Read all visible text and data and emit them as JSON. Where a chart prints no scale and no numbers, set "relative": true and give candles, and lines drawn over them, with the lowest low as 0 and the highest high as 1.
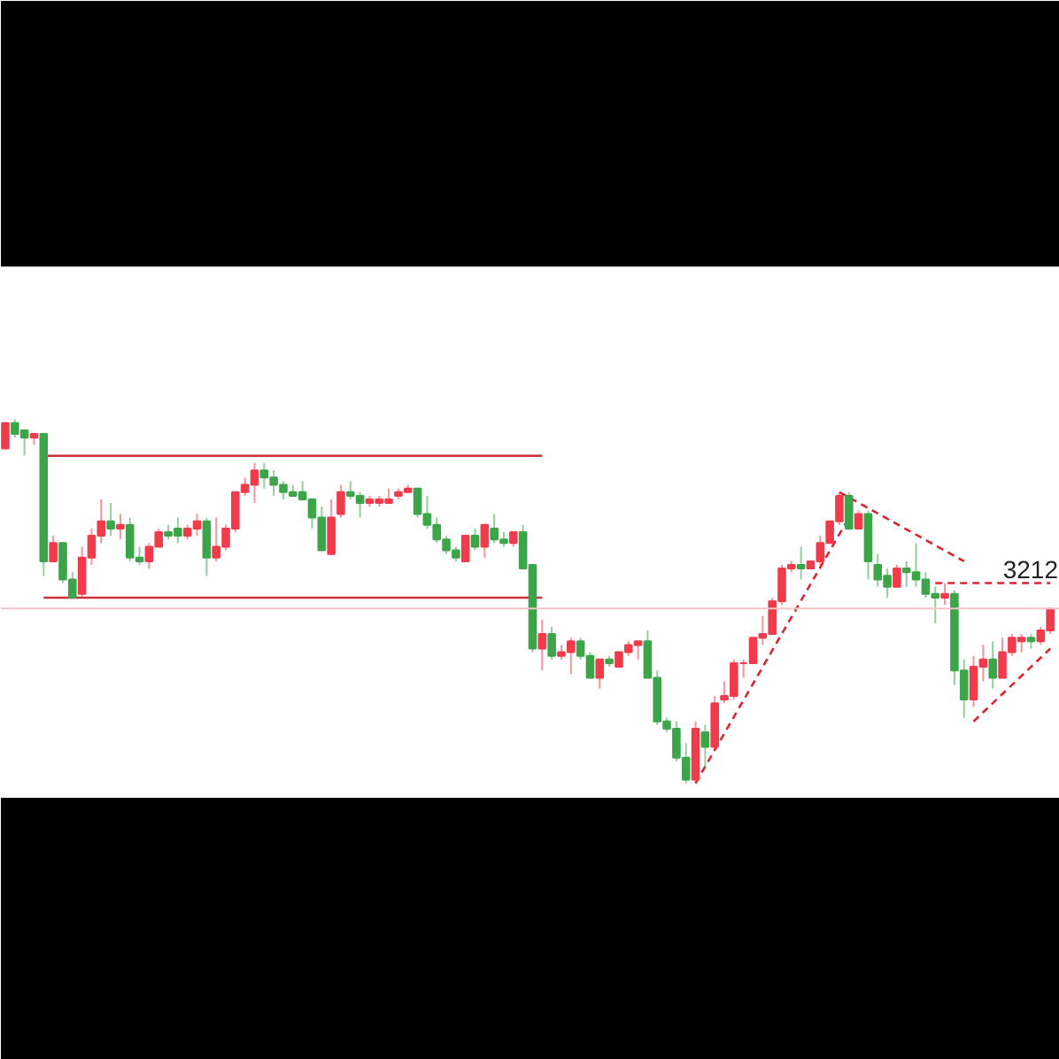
{
  "chart_data": {
    "type": "candlestick",
    "relative": true,
    "categories": [
      null,
      null,
      null,
      null,
      null,
      null,
      null,
      null,
      null,
      null,
      null,
      null,
      null,
      null,
      null,
      null,
      null,
      null,
      null,
      null,
      null,
      null,
      null,
      null,
      null,
      null,
      null,
      null,
      null,
      null,
      null,
      null,
      null,
      null,
      null,
      null,
      null,
      null,
      null,
      null,
      null,
      null,
      null,
      null,
      null,
      null,
      null,
      null,
      null,
      null,
      null,
      null,
      null,
      null,
      null,
      null,
      null,
      null,
      null,
      null,
      null,
      null,
      null,
      null,
      null,
      null,
      null,
      null,
      null,
      null,
      null,
      null,
      null,
      null,
      null,
      null,
      null,
      null,
      null,
      null,
      null,
      null,
      null,
      null,
      null,
      null,
      null,
      null,
      null,
      null,
      null,
      null,
      null,
      null,
      null,
      null,
      null,
      null,
      null,
      null,
      null,
      null,
      null,
      null,
      null,
      null,
      null,
      null,
      null,
      null
    ],
    "ohlc": [
      [
        0.92,
        0.99,
        0.92,
        0.99
      ],
      [
        0.99,
        1.0,
        0.95,
        0.96
      ],
      [
        0.97,
        0.97,
        0.9,
        0.95
      ],
      [
        0.95,
        0.96,
        0.93,
        0.96
      ],
      [
        0.96,
        0.96,
        0.57,
        0.61
      ],
      [
        0.61,
        0.68,
        0.61,
        0.66
      ],
      [
        0.66,
        0.66,
        0.55,
        0.56
      ],
      [
        0.56,
        0.58,
        0.51,
        0.51
      ],
      [
        0.52,
        0.65,
        0.51,
        0.62
      ],
      [
        0.62,
        0.7,
        0.6,
        0.68
      ],
      [
        0.68,
        0.78,
        0.66,
        0.72
      ],
      [
        0.72,
        0.77,
        0.68,
        0.7
      ],
      [
        0.7,
        0.74,
        0.67,
        0.71
      ],
      [
        0.71,
        0.73,
        0.61,
        0.62
      ],
      [
        0.62,
        0.65,
        0.6,
        0.61
      ],
      [
        0.61,
        0.66,
        0.59,
        0.65
      ],
      [
        0.65,
        0.7,
        0.65,
        0.69
      ],
      [
        0.69,
        0.71,
        0.67,
        0.68
      ],
      [
        0.7,
        0.73,
        0.66,
        0.68
      ],
      [
        0.68,
        0.71,
        0.67,
        0.7
      ],
      [
        0.7,
        0.74,
        0.68,
        0.72
      ],
      [
        0.72,
        0.73,
        0.57,
        0.62
      ],
      [
        0.62,
        0.73,
        0.61,
        0.65
      ],
      [
        0.65,
        0.71,
        0.64,
        0.7
      ],
      [
        0.7,
        0.8,
        0.69,
        0.8
      ],
      [
        0.8,
        0.84,
        0.79,
        0.82
      ],
      [
        0.82,
        0.88,
        0.77,
        0.86
      ],
      [
        0.86,
        0.88,
        0.81,
        0.84
      ],
      [
        0.84,
        0.86,
        0.79,
        0.82
      ],
      [
        0.82,
        0.83,
        0.78,
        0.8
      ],
      [
        0.8,
        0.82,
        0.79,
        0.79
      ],
      [
        0.8,
        0.83,
        0.78,
        0.78
      ],
      [
        0.78,
        0.78,
        0.7,
        0.73
      ],
      [
        0.73,
        0.76,
        0.64,
        0.64
      ],
      [
        0.63,
        0.78,
        0.63,
        0.73
      ],
      [
        0.74,
        0.82,
        0.73,
        0.8
      ],
      [
        0.8,
        0.83,
        0.78,
        0.79
      ],
      [
        0.79,
        0.8,
        0.73,
        0.77
      ],
      [
        0.77,
        0.79,
        0.76,
        0.78
      ],
      [
        0.77,
        0.79,
        0.76,
        0.78
      ],
      [
        0.77,
        0.81,
        0.77,
        0.78
      ],
      [
        0.79,
        0.81,
        0.78,
        0.8
      ],
      [
        0.8,
        0.82,
        0.8,
        0.81
      ],
      [
        0.81,
        0.81,
        0.73,
        0.74
      ],
      [
        0.74,
        0.79,
        0.7,
        0.71
      ],
      [
        0.71,
        0.73,
        0.66,
        0.67
      ],
      [
        0.67,
        0.68,
        0.63,
        0.64
      ],
      [
        0.64,
        0.65,
        0.61,
        0.62
      ],
      [
        0.61,
        0.68,
        0.61,
        0.68
      ],
      [
        0.68,
        0.7,
        0.64,
        0.65
      ],
      [
        0.65,
        0.71,
        0.62,
        0.71
      ],
      [
        0.7,
        0.74,
        0.66,
        0.67
      ],
      [
        0.67,
        0.69,
        0.65,
        0.66
      ],
      [
        0.66,
        0.69,
        0.65,
        0.69
      ],
      [
        0.69,
        0.71,
        0.59,
        0.59
      ],
      [
        0.6,
        0.6,
        0.36,
        0.37
      ],
      [
        0.37,
        0.45,
        0.31,
        0.41
      ],
      [
        0.41,
        0.43,
        0.34,
        0.35
      ],
      [
        0.35,
        0.38,
        0.34,
        0.36
      ],
      [
        0.36,
        0.4,
        0.3,
        0.39
      ],
      [
        0.39,
        0.4,
        0.34,
        0.35
      ],
      [
        0.35,
        0.36,
        0.29,
        0.29
      ],
      [
        0.29,
        0.34,
        0.26,
        0.34
      ],
      [
        0.34,
        0.35,
        0.32,
        0.33
      ],
      [
        0.32,
        0.36,
        0.32,
        0.36
      ],
      [
        0.36,
        0.39,
        0.35,
        0.38
      ],
      [
        0.38,
        0.39,
        0.34,
        0.39
      ],
      [
        0.39,
        0.42,
        0.29,
        0.29
      ],
      [
        0.29,
        0.31,
        0.16,
        0.17
      ],
      [
        0.17,
        0.18,
        0.14,
        0.15
      ],
      [
        0.15,
        0.17,
        0.06,
        0.07
      ],
      [
        0.07,
        0.11,
        0.0,
        0.01
      ],
      [
        0.01,
        0.17,
        0.0,
        0.15
      ],
      [
        0.14,
        0.16,
        0.04,
        0.1
      ],
      [
        0.1,
        0.24,
        0.09,
        0.22
      ],
      [
        0.23,
        0.28,
        0.22,
        0.24
      ],
      [
        0.24,
        0.34,
        0.23,
        0.33
      ],
      [
        0.33,
        0.34,
        0.29,
        0.33
      ],
      [
        0.33,
        0.4,
        0.33,
        0.4
      ],
      [
        0.4,
        0.46,
        0.38,
        0.41
      ],
      [
        0.41,
        0.51,
        0.41,
        0.5
      ],
      [
        0.5,
        0.6,
        0.49,
        0.59
      ],
      [
        0.59,
        0.61,
        0.58,
        0.6
      ],
      [
        0.6,
        0.65,
        0.56,
        0.59
      ],
      [
        0.59,
        0.61,
        0.59,
        0.61
      ],
      [
        0.61,
        0.68,
        0.6,
        0.66
      ],
      [
        0.66,
        0.72,
        0.66,
        0.72
      ],
      [
        0.72,
        0.8,
        0.71,
        0.79
      ],
      [
        0.79,
        0.8,
        0.7,
        0.7
      ],
      [
        0.7,
        0.75,
        0.7,
        0.74
      ],
      [
        0.74,
        0.75,
        0.56,
        0.61
      ],
      [
        0.6,
        0.63,
        0.54,
        0.56
      ],
      [
        0.57,
        0.59,
        0.51,
        0.54
      ],
      [
        0.54,
        0.6,
        0.54,
        0.59
      ],
      [
        0.59,
        0.61,
        0.54,
        0.58
      ],
      [
        0.58,
        0.66,
        0.54,
        0.56
      ],
      [
        0.56,
        0.58,
        0.51,
        0.52
      ],
      [
        0.52,
        0.54,
        0.44,
        0.51
      ],
      [
        0.51,
        0.55,
        0.49,
        0.52
      ],
      [
        0.52,
        0.53,
        0.27,
        0.31
      ],
      [
        0.31,
        0.34,
        0.18,
        0.23
      ],
      [
        0.23,
        0.35,
        0.21,
        0.32
      ],
      [
        0.32,
        0.38,
        0.28,
        0.34
      ],
      [
        0.34,
        0.39,
        0.26,
        0.29
      ],
      [
        0.29,
        0.4,
        0.29,
        0.36
      ],
      [
        0.36,
        0.41,
        0.35,
        0.4
      ],
      [
        0.39,
        0.41,
        0.36,
        0.4
      ],
      [
        0.4,
        0.41,
        0.37,
        0.39
      ],
      [
        0.39,
        0.43,
        0.38,
        0.42
      ],
      [
        0.42,
        0.48,
        0.41,
        0.48
      ]
    ],
    "colors": [
      "#ef3b4b",
      "#3ca54a",
      "#3ca54a",
      "#ef3b4b",
      "#3ca54a",
      "#ef3b4b",
      "#3ca54a",
      "#3ca54a",
      "#ef3b4b",
      "#ef3b4b",
      "#ef3b4b",
      "#3ca54a",
      "#ef3b4b",
      "#3ca54a",
      "#3ca54a",
      "#ef3b4b",
      "#ef3b4b",
      "#3ca54a",
      "#3ca54a",
      "#ef3b4b",
      "#ef3b4b",
      "#3ca54a",
      "#ef3b4b",
      "#ef3b4b",
      "#ef3b4b",
      "#ef3b4b",
      "#ef3b4b",
      "#3ca54a",
      "#3ca54a",
      "#3ca54a",
      "#3ca54a",
      "#3ca54a",
      "#3ca54a",
      "#3ca54a",
      "#ef3b4b",
      "#ef3b4b",
      "#3ca54a",
      "#3ca54a",
      "#ef3b4b",
      "#ef3b4b",
      "#ef3b4b",
      "#ef3b4b",
      "#ef3b4b",
      "#3ca54a",
      "#3ca54a",
      "#3ca54a",
      "#3ca54a",
      "#3ca54a",
      "#ef3b4b",
      "#3ca54a",
      "#ef3b4b",
      "#3ca54a",
      "#3ca54a",
      "#ef3b4b",
      "#3ca54a",
      "#3ca54a",
      "#ef3b4b",
      "#3ca54a",
      "#ef3b4b",
      "#ef3b4b",
      "#3ca54a",
      "#3ca54a",
      "#ef3b4b",
      "#3ca54a",
      "#ef3b4b",
      "#ef3b4b",
      "#ef3b4b",
      "#3ca54a",
      "#3ca54a",
      "#3ca54a",
      "#3ca54a",
      "#3ca54a",
      "#ef3b4b",
      "#3ca54a",
      "#ef3b4b",
      "#ef3b4b",
      "#ef3b4b",
      "#ef3b4b",
      "#ef3b4b",
      "#ef3b4b",
      "#ef3b4b",
      "#ef3b4b",
      "#ef3b4b",
      "#3ca54a",
      "#ef3b4b",
      "#ef3b4b",
      "#ef3b4b",
      "#ef3b4b",
      "#3ca54a",
      "#ef3b4b",
      "#3ca54a",
      "#3ca54a",
      "#3ca54a",
      "#ef3b4b",
      "#3ca54a",
      "#3ca54a",
      "#3ca54a",
      "#3ca54a",
      "#ef3b4b",
      "#3ca54a",
      "#3ca54a",
      "#ef3b4b",
      "#ef3b4b",
      "#3ca54a",
      "#ef3b4b",
      "#ef3b4b",
      "#ef3b4b",
      "#3ca54a",
      "#ef3b4b",
      "#ef3b4b"
    ],
    "series": [
      {
        "type": "line",
        "color": "#c8323a",
        "line_style": "solid",
        "values": [
          null,
          null,
          null,
          null,
          0.9,
          0.9,
          0.9,
          0.9,
          0.9,
          0.9,
          0.9,
          0.9,
          0.9,
          0.9,
          0.9,
          0.9,
          0.9,
          0.9,
          0.9,
          0.9,
          0.9,
          0.9,
          0.9,
          0.9,
          0.9,
          0.9,
          0.9,
          0.9,
          0.9,
          0.9,
          0.9,
          0.9,
          0.9,
          0.9,
          0.9,
          0.9,
          0.9,
          0.9,
          0.9,
          0.9,
          0.9,
          0.9,
          0.9,
          0.9,
          0.9,
          0.9,
          0.9,
          0.9,
          0.9,
          0.9,
          0.9,
          0.9,
          0.9,
          0.9,
          0.9,
          0.9,
          0.9,
          null,
          null,
          null,
          null,
          null,
          null,
          null,
          null,
          null,
          null,
          null,
          null,
          null,
          null,
          null,
          null,
          null,
          null,
          null,
          null,
          null,
          null,
          null,
          null,
          null,
          null,
          null,
          null,
          null,
          null,
          null,
          null,
          null,
          null,
          null,
          null,
          null,
          null,
          null,
          null,
          null,
          null,
          null,
          null,
          null,
          null,
          null,
          null,
          null,
          null,
          null,
          null,
          null
        ]
      },
      {
        "type": "line",
        "color": "#c8323a",
        "line_style": "solid",
        "values": [
          null,
          null,
          null,
          null,
          0.51,
          0.51,
          0.51,
          0.51,
          0.51,
          0.51,
          0.51,
          0.51,
          0.51,
          0.51,
          0.51,
          0.51,
          0.51,
          0.51,
          0.51,
          0.51,
          0.51,
          0.51,
          0.51,
          0.51,
          0.51,
          0.51,
          0.51,
          0.51,
          0.51,
          0.51,
          0.51,
          0.51,
          0.51,
          0.51,
          0.51,
          0.51,
          0.51,
          0.51,
          0.51,
          0.51,
          0.51,
          0.51,
          0.51,
          0.51,
          0.51,
          0.51,
          0.51,
          0.51,
          0.51,
          0.51,
          0.51,
          0.51,
          0.51,
          0.51,
          0.51,
          0.51,
          0.51,
          null,
          null,
          null,
          null,
          null,
          null,
          null,
          null,
          null,
          null,
          null,
          null,
          null,
          null,
          null,
          null,
          null,
          null,
          null,
          null,
          null,
          null,
          null,
          null,
          null,
          null,
          null,
          null,
          null,
          null,
          null,
          null,
          null,
          null,
          null,
          null,
          null,
          null,
          null,
          null,
          null,
          null,
          null,
          null,
          null,
          null,
          null,
          null,
          null,
          null,
          null,
          null,
          null
        ]
      },
      {
        "type": "line",
        "color": "#d9252f",
        "line_style": "dashed",
        "values": [
          null,
          null,
          null,
          null,
          null,
          null,
          null,
          null,
          null,
          null,
          null,
          null,
          null,
          null,
          null,
          null,
          null,
          null,
          null,
          null,
          null,
          null,
          null,
          null,
          null,
          null,
          null,
          null,
          null,
          null,
          null,
          null,
          null,
          null,
          null,
          null,
          null,
          null,
          null,
          null,
          null,
          null,
          null,
          null,
          null,
          null,
          null,
          null,
          null,
          null,
          null,
          null,
          null,
          null,
          null,
          null,
          null,
          null,
          null,
          null,
          null,
          null,
          null,
          null,
          null,
          null,
          null,
          null,
          null,
          null,
          null,
          null,
          0.0,
          null,
          null,
          null,
          null,
          null,
          null,
          null,
          null,
          null,
          null,
          null,
          null,
          null,
          null,
          null,
          0.73,
          null,
          null,
          null,
          null,
          null,
          null,
          null,
          null,
          null,
          null,
          null,
          null,
          null,
          null,
          null,
          null,
          null,
          null,
          null,
          null,
          null
        ]
      },
      {
        "type": "line",
        "color": "#d9252f",
        "line_style": "dashed",
        "values": [
          null,
          null,
          null,
          null,
          null,
          null,
          null,
          null,
          null,
          null,
          null,
          null,
          null,
          null,
          null,
          null,
          null,
          null,
          null,
          null,
          null,
          null,
          null,
          null,
          null,
          null,
          null,
          null,
          null,
          null,
          null,
          null,
          null,
          null,
          null,
          null,
          null,
          null,
          null,
          null,
          null,
          null,
          null,
          null,
          null,
          null,
          null,
          null,
          null,
          null,
          null,
          null,
          null,
          null,
          null,
          null,
          null,
          null,
          null,
          null,
          null,
          null,
          null,
          null,
          null,
          null,
          null,
          null,
          null,
          null,
          null,
          null,
          null,
          null,
          null,
          null,
          null,
          null,
          null,
          null,
          null,
          null,
          null,
          null,
          null,
          null,
          null,
          0.8,
          null,
          null,
          null,
          null,
          null,
          null,
          null,
          null,
          null,
          null,
          null,
          null,
          0.61,
          null,
          null,
          null,
          null,
          null,
          null,
          null,
          null,
          null
        ]
      },
      {
        "type": "line",
        "color": "#d9252f",
        "line_style": "dashed",
        "values": [
          null,
          null,
          null,
          null,
          null,
          null,
          null,
          null,
          null,
          null,
          null,
          null,
          null,
          null,
          null,
          null,
          null,
          null,
          null,
          null,
          null,
          null,
          null,
          null,
          null,
          null,
          null,
          null,
          null,
          null,
          null,
          null,
          null,
          null,
          null,
          null,
          null,
          null,
          null,
          null,
          null,
          null,
          null,
          null,
          null,
          null,
          null,
          null,
          null,
          null,
          null,
          null,
          null,
          null,
          null,
          null,
          null,
          null,
          null,
          null,
          null,
          null,
          null,
          null,
          null,
          null,
          null,
          null,
          null,
          null,
          null,
          null,
          null,
          null,
          null,
          null,
          null,
          null,
          null,
          null,
          null,
          null,
          null,
          null,
          null,
          null,
          null,
          null,
          null,
          null,
          null,
          null,
          null,
          null,
          null,
          null,
          null,
          null,
          null,
          null,
          null,
          0.17,
          null,
          null,
          null,
          null,
          null,
          null,
          null,
          0.37
        ]
      },
      {
        "type": "line",
        "color": "#d9252f",
        "line_style": "dashed",
        "values": [
          null,
          null,
          null,
          null,
          null,
          null,
          null,
          null,
          null,
          null,
          null,
          null,
          null,
          null,
          null,
          null,
          null,
          null,
          null,
          null,
          null,
          null,
          null,
          null,
          null,
          null,
          null,
          null,
          null,
          null,
          null,
          null,
          null,
          null,
          null,
          null,
          null,
          null,
          null,
          null,
          null,
          null,
          null,
          null,
          null,
          null,
          null,
          null,
          null,
          null,
          null,
          null,
          null,
          null,
          null,
          null,
          null,
          null,
          null,
          null,
          null,
          null,
          null,
          null,
          null,
          null,
          null,
          null,
          null,
          null,
          null,
          null,
          null,
          null,
          null,
          null,
          null,
          null,
          null,
          null,
          null,
          null,
          null,
          null,
          null,
          null,
          null,
          null,
          null,
          null,
          null,
          null,
          null,
          null,
          null,
          null,
          null,
          0.55,
          null,
          null,
          null,
          null,
          null,
          null,
          null,
          null,
          null,
          null,
          null,
          0.55
        ]
      }
    ],
    "ref_lines": [
      {
        "axis": "y",
        "value": 0.48,
        "color": "#f6c4c8",
        "line_style": "solid"
      }
    ],
    "annotations": [
      {
        "text": "3212",
        "y": 0.55
      }
    ]
  }
}
